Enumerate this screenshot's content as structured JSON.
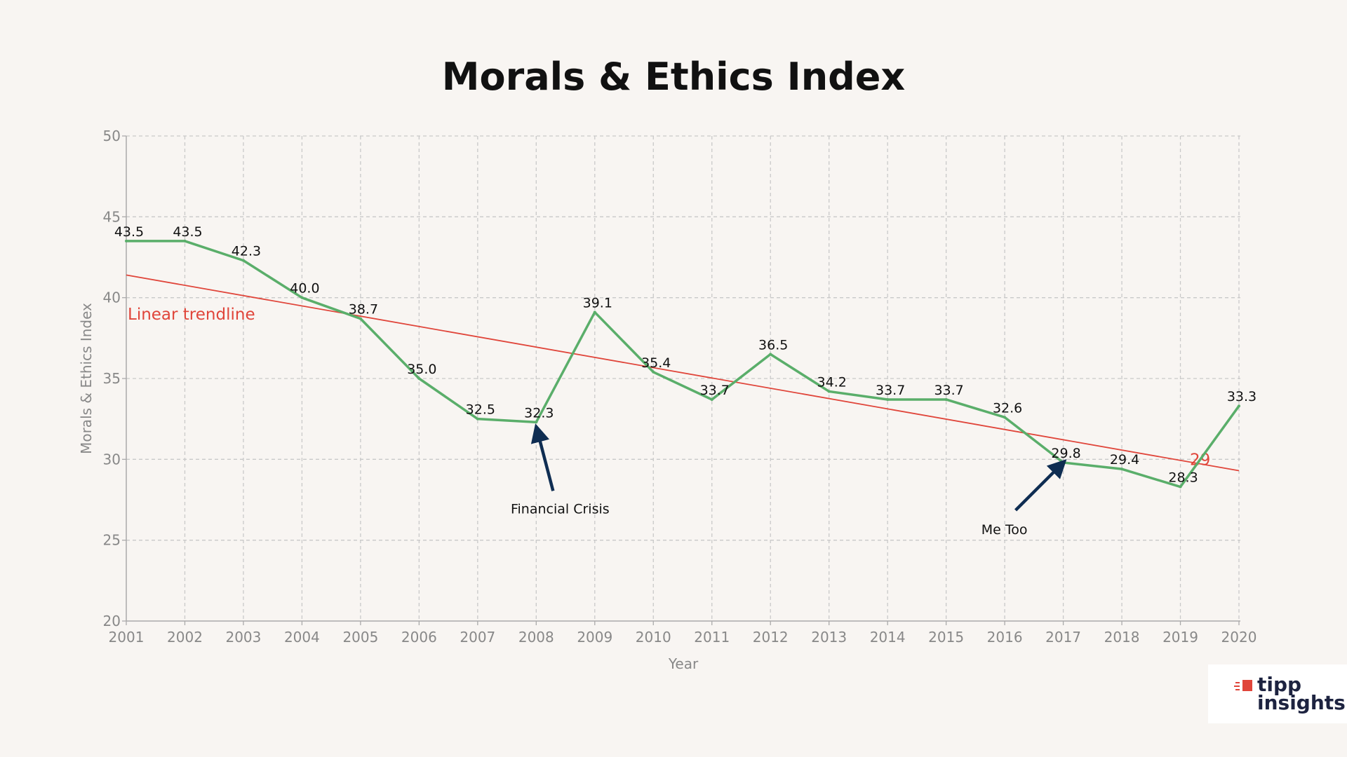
{
  "chart_data": {
    "type": "line",
    "title": "Morals & Ethics Index",
    "xlabel": "Year",
    "ylabel": "Morals & Ethics Index",
    "ylim": [
      20,
      50
    ],
    "yticks": [
      20,
      25,
      30,
      35,
      40,
      45,
      50
    ],
    "grid": true,
    "categories": [
      "2001",
      "2002",
      "2003",
      "2004",
      "2005",
      "2006",
      "2007",
      "2008",
      "2009",
      "2010",
      "2011",
      "2012",
      "2013",
      "2014",
      "2015",
      "2016",
      "2017",
      "2018",
      "2019",
      "2020"
    ],
    "series": [
      {
        "values": [
          43.5,
          43.5,
          42.3,
          40.0,
          38.7,
          35.0,
          32.5,
          32.3,
          39.1,
          35.4,
          33.7,
          36.5,
          34.2,
          33.7,
          33.7,
          32.6,
          29.8,
          29.4,
          28.3,
          33.3
        ],
        "labels": [
          "43.5",
          "43.5",
          "42.3",
          "40.0",
          "38.7",
          "35.0",
          "32.5",
          "32.3",
          "39.1",
          "35.4",
          "33.7",
          "36.5",
          "34.2",
          "33.7",
          "33.7",
          "32.6",
          "29.8",
          "29.4",
          "28.3",
          "33.3"
        ],
        "color": "#5aae6a"
      }
    ],
    "trendline": {
      "label": "Linear trendline",
      "start_value": 41.4,
      "end_value": 29.3,
      "end_label": "29",
      "color": "#e0453a"
    },
    "annotations": [
      {
        "text": "Financial Crisis",
        "year": "2008",
        "value": 32.3,
        "arrow_color": "#0f2d52"
      },
      {
        "text": "Me Too",
        "year": "2017",
        "value": 29.8,
        "arrow_color": "#0f2d52"
      }
    ]
  },
  "logo": {
    "line1": "tipp",
    "line2": "insights",
    "mark_color": "#e0453a"
  }
}
